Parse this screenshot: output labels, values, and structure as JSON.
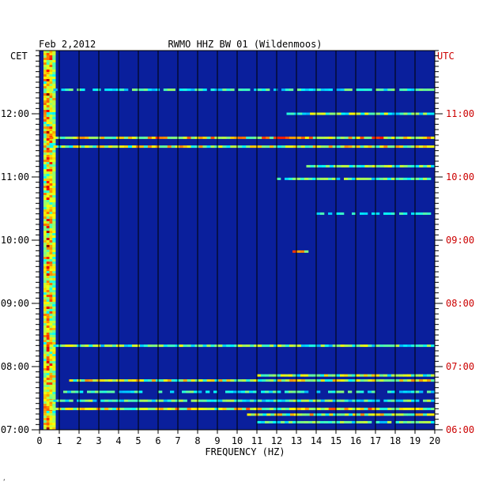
{
  "chart_data": {
    "type": "heatmap",
    "title": "RWMO HHZ BW 01 (Wildenmoos)",
    "date": "Feb 2,2012",
    "xlabel": "FREQUENCY (HZ)",
    "xlim": [
      0,
      20
    ],
    "x_ticks": [
      "0",
      "1",
      "2",
      "3",
      "4",
      "5",
      "6",
      "7",
      "8",
      "9",
      "10",
      "11",
      "12",
      "13",
      "14",
      "15",
      "16",
      "17",
      "18",
      "19",
      "20"
    ],
    "left_axis_label": "CET",
    "right_axis_label": "UTC",
    "time_range_cet_hours": [
      7.0,
      13.0
    ],
    "left_ticks": [
      {
        "value": 12,
        "label": "12:00"
      },
      {
        "value": 11,
        "label": "11:00"
      },
      {
        "value": 10,
        "label": "10:00"
      },
      {
        "value": 9,
        "label": "09:00"
      },
      {
        "value": 8,
        "label": "08:00"
      },
      {
        "value": 7,
        "label": "07:00"
      }
    ],
    "right_ticks": [
      {
        "value": 12,
        "label": "11:00"
      },
      {
        "value": 11,
        "label": "10:00"
      },
      {
        "value": 10,
        "label": "09:00"
      },
      {
        "value": 9,
        "label": "08:00"
      },
      {
        "value": 8,
        "label": "07:00"
      },
      {
        "value": 7,
        "label": "06:00"
      }
    ],
    "colors": {
      "background": "#0a1f9c",
      "right_axis": "#cc0000"
    },
    "low_freq_band_hz": [
      0.2,
      0.8
    ],
    "events": [
      {
        "time_cet": 12.38,
        "f_start": 0.5,
        "f_end": 20,
        "intensity": 0.45
      },
      {
        "time_cet": 12.0,
        "f_start": 12.5,
        "f_end": 20,
        "intensity": 0.55
      },
      {
        "time_cet": 11.62,
        "f_start": 0.5,
        "f_end": 20,
        "intensity": 0.75
      },
      {
        "time_cet": 11.48,
        "f_start": 0.5,
        "f_end": 20,
        "intensity": 0.65
      },
      {
        "time_cet": 11.17,
        "f_start": 13.5,
        "f_end": 20,
        "intensity": 0.55
      },
      {
        "time_cet": 10.97,
        "f_start": 12,
        "f_end": 20,
        "intensity": 0.5
      },
      {
        "time_cet": 10.42,
        "f_start": 14,
        "f_end": 20,
        "intensity": 0.4
      },
      {
        "time_cet": 9.82,
        "f_start": 12.8,
        "f_end": 13.6,
        "intensity": 0.9
      },
      {
        "time_cet": 8.33,
        "f_start": 0.5,
        "f_end": 20,
        "intensity": 0.55
      },
      {
        "time_cet": 7.86,
        "f_start": 11,
        "f_end": 20,
        "intensity": 0.6
      },
      {
        "time_cet": 7.78,
        "f_start": 1.5,
        "f_end": 20,
        "intensity": 0.65
      },
      {
        "time_cet": 7.6,
        "f_start": 1,
        "f_end": 20,
        "intensity": 0.45
      },
      {
        "time_cet": 7.46,
        "f_start": 0.5,
        "f_end": 20,
        "intensity": 0.5
      },
      {
        "time_cet": 7.33,
        "f_start": 0.5,
        "f_end": 20,
        "intensity": 0.7
      },
      {
        "time_cet": 7.24,
        "f_start": 10.5,
        "f_end": 20,
        "intensity": 0.65
      },
      {
        "time_cet": 7.12,
        "f_start": 11,
        "f_end": 20,
        "intensity": 0.5
      }
    ]
  },
  "corner_mark": "ʼ"
}
